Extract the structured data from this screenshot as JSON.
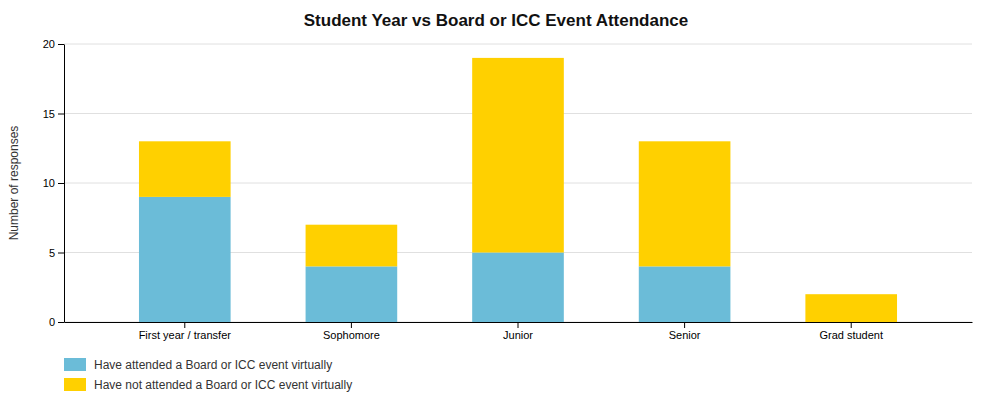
{
  "chart_data": {
    "type": "bar",
    "stacked": true,
    "title": "Student Year vs Board or ICC Event Attendance",
    "categories": [
      "First year / transfer",
      "Sophomore",
      "Junior",
      "Senior",
      "Grad student"
    ],
    "series": [
      {
        "name": "Have attended a Board or ICC event virtually",
        "color": "#6bbcd8",
        "values": [
          9,
          4,
          5,
          4,
          0
        ]
      },
      {
        "name": "Have not attended a Board or ICC event virtually",
        "color": "#ffd000",
        "values": [
          4,
          3,
          14,
          9,
          2
        ]
      }
    ],
    "ylabel": "Number of responses",
    "ylim": [
      0,
      20
    ],
    "yticks": [
      0,
      5,
      10,
      15,
      20
    ],
    "grid": true,
    "legend": "bottom"
  }
}
